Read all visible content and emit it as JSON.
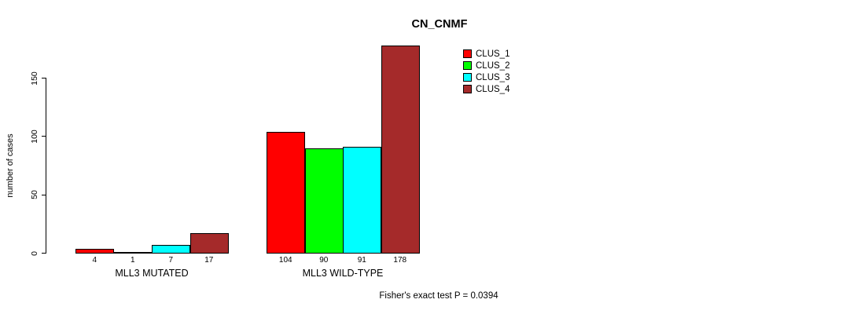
{
  "chart_data": {
    "type": "bar",
    "title": "CN_CNMF",
    "ylabel": "number of cases",
    "xlabel": "",
    "categories": [
      "MLL3 MUTATED",
      "MLL3 WILD-TYPE"
    ],
    "series": [
      {
        "name": "CLUS_1",
        "color": "#FF0000",
        "values": [
          4,
          104
        ]
      },
      {
        "name": "CLUS_2",
        "color": "#00FF00",
        "values": [
          1,
          90
        ]
      },
      {
        "name": "CLUS_3",
        "color": "#00FFFF",
        "values": [
          7,
          91
        ]
      },
      {
        "name": "CLUS_4",
        "color": "#A52A2A",
        "values": [
          17,
          178
        ]
      }
    ],
    "yticks": [
      0,
      50,
      100,
      150
    ],
    "ylim": [
      0,
      178
    ],
    "grid": false,
    "legend_position": "top-right",
    "legend_items": [
      "CLUS_1",
      "CLUS_2",
      "CLUS_3",
      "CLUS_4"
    ],
    "bar_border_color": "#000000",
    "axis_color": "#000000",
    "background_color": "#FFFFFF",
    "annotation": "Fisher's exact test P = 0.0394"
  }
}
